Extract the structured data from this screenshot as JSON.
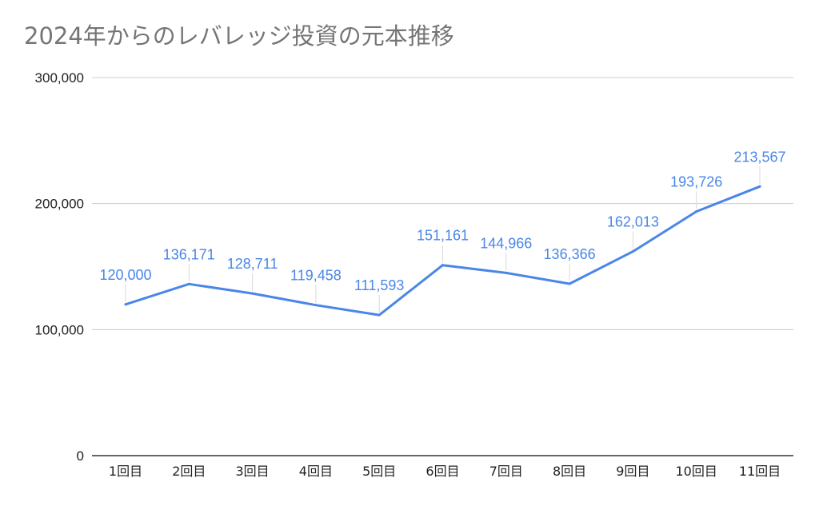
{
  "chart_data": {
    "type": "line",
    "title": "2024年からのレバレッジ投資の元本推移",
    "xlabel": "",
    "ylabel": "",
    "categories": [
      "1回目",
      "2回目",
      "3回目",
      "4回目",
      "5回目",
      "6回目",
      "7回目",
      "8回目",
      "9回目",
      "10回目",
      "11回目"
    ],
    "series": [
      {
        "values": [
          120000,
          136171,
          128711,
          119458,
          111593,
          151161,
          144966,
          136366,
          162013,
          193726,
          213567
        ],
        "labels": [
          "120,000",
          "136,171",
          "128,711",
          "119,458",
          "111,593",
          "151,161",
          "144,966",
          "136,366",
          "162,013",
          "193,726",
          "213,567"
        ]
      }
    ],
    "ylim": [
      0,
      300000
    ],
    "yticks": [
      0,
      100000,
      200000,
      300000
    ],
    "ytick_labels": [
      "0",
      "100,000",
      "200,000",
      "300,000"
    ],
    "grid": true,
    "legend": "none",
    "colors": {
      "line": "#4a86e8",
      "grid": "#cccccc",
      "axis": "#333333"
    }
  }
}
